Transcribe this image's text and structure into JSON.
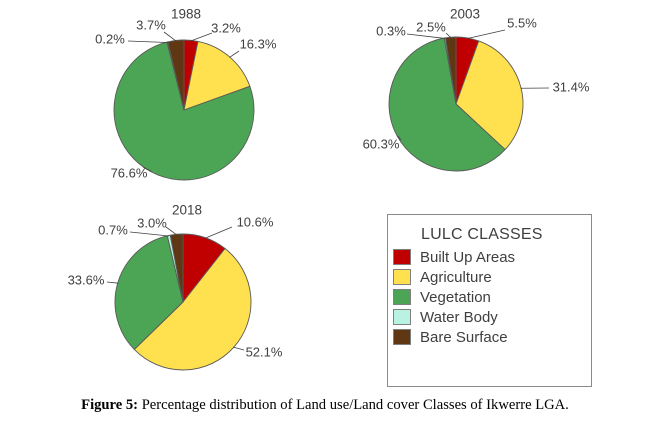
{
  "page": {
    "background": "#ffffff"
  },
  "lulc_classes": [
    {
      "label": "Built Up Areas",
      "color": "#C00000"
    },
    {
      "label": "Agriculture",
      "color": "#FFE14F"
    },
    {
      "label": "Vegetation",
      "color": "#4CA554"
    },
    {
      "label": "Water Body",
      "color": "#B9F1E3"
    },
    {
      "label": "Bare Surface",
      "color": "#5F3813"
    }
  ],
  "legend": {
    "title": "LULC CLASSES"
  },
  "chart_data": [
    {
      "type": "pie",
      "title": "1988",
      "categories": [
        "Built Up Areas",
        "Agriculture",
        "Vegetation",
        "Water Body",
        "Bare Surface"
      ],
      "values": [
        3.2,
        16.3,
        76.6,
        0.2,
        3.7
      ],
      "value_labels": [
        "3.2%",
        "16.3%",
        "76.6%",
        "0.2%",
        "3.7%"
      ],
      "unit": "%",
      "start_angle_deg": 0,
      "direction": "clockwise"
    },
    {
      "type": "pie",
      "title": "2003",
      "categories": [
        "Built Up Areas",
        "Agriculture",
        "Vegetation",
        "Water Body",
        "Bare Surface"
      ],
      "values": [
        5.5,
        31.4,
        60.3,
        0.3,
        2.5
      ],
      "value_labels": [
        "5.5%",
        "31.4%",
        "60.3%",
        "0.3%",
        "2.5%"
      ],
      "unit": "%",
      "start_angle_deg": 0,
      "direction": "clockwise"
    },
    {
      "type": "pie",
      "title": "2018",
      "categories": [
        "Built Up Areas",
        "Agriculture",
        "Vegetation",
        "Water Body",
        "Bare Surface"
      ],
      "values": [
        10.6,
        52.1,
        33.6,
        0.7,
        3.0
      ],
      "value_labels": [
        "10.6%",
        "52.1%",
        "33.6%",
        "0.7%",
        "3.0%"
      ],
      "unit": "%",
      "start_angle_deg": 0,
      "direction": "clockwise"
    }
  ],
  "caption": {
    "label": "Figure 5:",
    "text": " Percentage distribution of Land use/Land cover Classes of Ikwerre LGA."
  }
}
